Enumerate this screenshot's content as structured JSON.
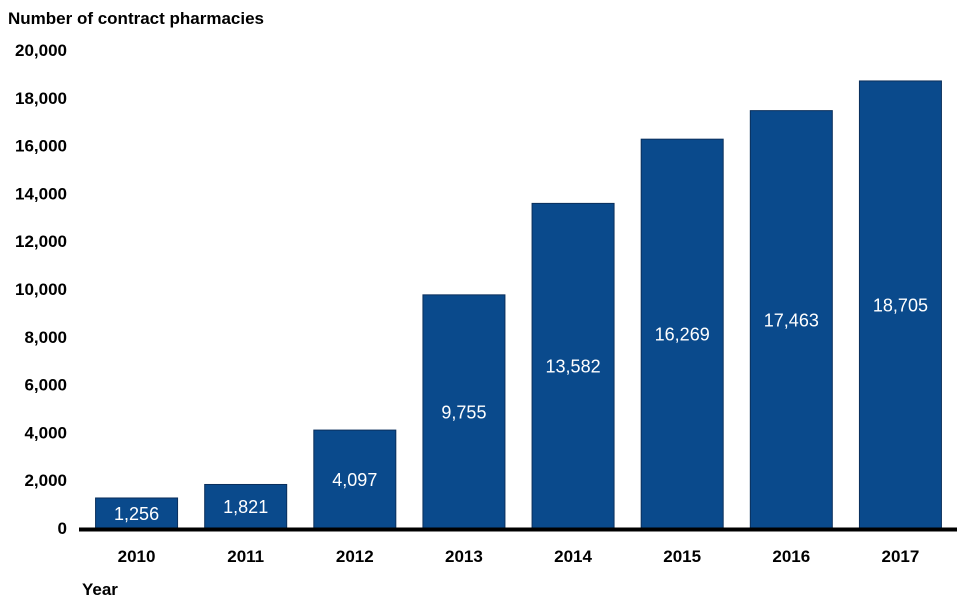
{
  "chart_data": {
    "type": "bar",
    "ylabel": "Number of contract pharmacies",
    "xlabel": "Year",
    "categories": [
      "2010",
      "2011",
      "2012",
      "2013",
      "2014",
      "2015",
      "2016",
      "2017"
    ],
    "values": [
      1256,
      1821,
      4097,
      9755,
      13582,
      16269,
      17463,
      18705
    ],
    "data_labels": [
      "1,256",
      "1,821",
      "4,097",
      "9,755",
      "13,582",
      "16,269",
      "17,463",
      "18,705"
    ],
    "yticks": [
      0,
      2000,
      4000,
      6000,
      8000,
      10000,
      12000,
      14000,
      16000,
      18000,
      20000
    ],
    "ytick_labels": [
      "0",
      "2,000",
      "4,000",
      "6,000",
      "8,000",
      "10,000",
      "12,000",
      "14,000",
      "16,000",
      "18,000",
      "20,000"
    ],
    "ylim": [
      0,
      20000
    ],
    "grid": false,
    "legend": "none",
    "bar_color": "#0a4a8c",
    "axis_color": "#000000"
  }
}
